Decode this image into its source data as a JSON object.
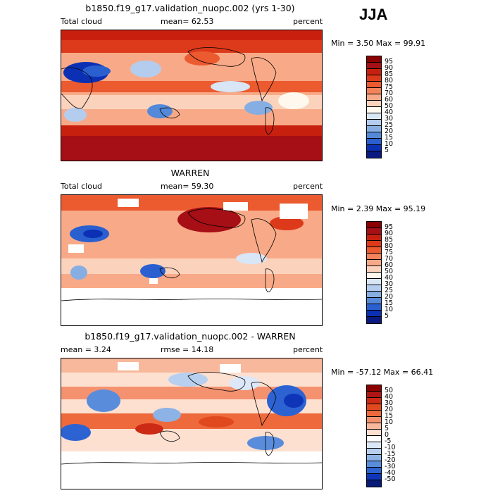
{
  "season": "JJA",
  "panels": [
    {
      "id": "model",
      "title": "b1850.f19_g17.validation_nuopc.002 (yrs 1-30)",
      "left_label": "Total cloud",
      "mid_label": "mean=  62.53",
      "right_label": "percent",
      "minmax": "Min =    3.50 Max =   99.91",
      "colorbar": {
        "labels": [
          "95",
          "90",
          "85",
          "80",
          "75",
          "70",
          "60",
          "50",
          "40",
          "30",
          "25",
          "20",
          "15",
          "10",
          "5"
        ],
        "colors": [
          "#8b0000",
          "#a50f15",
          "#c8200f",
          "#dc3a1a",
          "#ec5a30",
          "#f4825a",
          "#f8aa88",
          "#fbd3bd",
          "#fff8ee",
          "#d8e6f6",
          "#b4cdee",
          "#86aee2",
          "#5488d8",
          "#2a5fd0",
          "#0c30b4",
          "#0a1a80"
        ]
      }
    },
    {
      "id": "obs",
      "title": "WARREN",
      "left_label": "Total cloud",
      "mid_label": "mean=  59.30",
      "right_label": "percent",
      "minmax": "Min =    2.39 Max =   95.19",
      "colorbar": {
        "labels": [
          "95",
          "90",
          "85",
          "80",
          "75",
          "70",
          "60",
          "50",
          "40",
          "30",
          "25",
          "20",
          "15",
          "10",
          "5"
        ],
        "colors": [
          "#8b0000",
          "#a50f15",
          "#c8200f",
          "#dc3a1a",
          "#ec5a30",
          "#f4825a",
          "#f8aa88",
          "#fbd3bd",
          "#fff8ee",
          "#d8e6f6",
          "#b4cdee",
          "#86aee2",
          "#5488d8",
          "#2a5fd0",
          "#0c30b4",
          "#0a1a80"
        ]
      }
    },
    {
      "id": "diff",
      "title": "b1850.f19_g17.validation_nuopc.002 - WARREN",
      "left_label": "mean =    3.24",
      "mid_label": "rmse =  14.18",
      "right_label": "percent",
      "minmax": "Min =  -57.12 Max =   66.41",
      "colorbar": {
        "labels": [
          "50",
          "40",
          "30",
          "20",
          "15",
          "10",
          "5",
          "0",
          "-5",
          "-10",
          "-15",
          "-20",
          "-30",
          "-40",
          "-50"
        ],
        "colors": [
          "#8b0000",
          "#b01515",
          "#cc2a14",
          "#e0481e",
          "#ee6a3c",
          "#f49270",
          "#f8b89c",
          "#fde0d0",
          "#ffffff",
          "#dce8f8",
          "#b8d0f0",
          "#8cb2e6",
          "#5a8cdc",
          "#2d62d2",
          "#0e34b8",
          "#081a78"
        ]
      }
    }
  ]
}
